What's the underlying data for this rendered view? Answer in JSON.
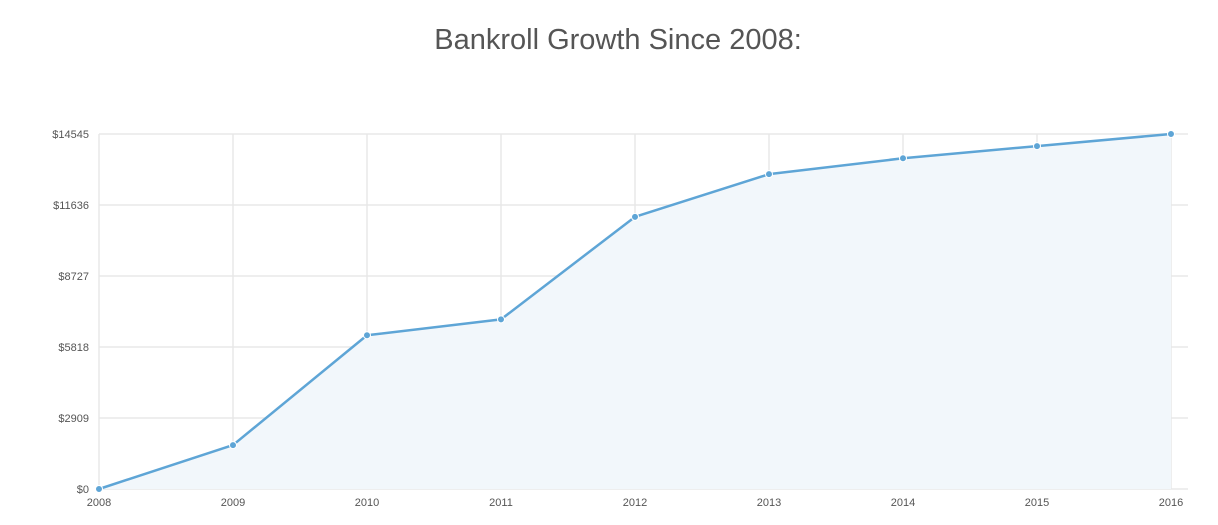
{
  "chart_data": {
    "type": "area",
    "title": "Bankroll Growth Since 2008:",
    "xlabel": "",
    "ylabel": "",
    "x": [
      "2008",
      "2009",
      "2010",
      "2011",
      "2012",
      "2013",
      "2014",
      "2015",
      "2016"
    ],
    "series": [
      {
        "values": [
          0,
          1800,
          6300,
          6950,
          11150,
          12900,
          13550,
          14050,
          14545
        ]
      }
    ],
    "y_ticks": [
      0,
      2909,
      5818,
      8727,
      11636,
      14545
    ],
    "y_tick_labels": [
      "$0",
      "$2909",
      "$5818",
      "$8727",
      "$11636",
      "$14545"
    ],
    "ylim": [
      0,
      14545
    ],
    "grid": true,
    "legend": "none",
    "colors": {
      "line": "#5ea5d6",
      "fill": "#f2f7fb",
      "grid": "#e8e8e8",
      "title": "#555555",
      "tick_text": "#555555"
    }
  }
}
